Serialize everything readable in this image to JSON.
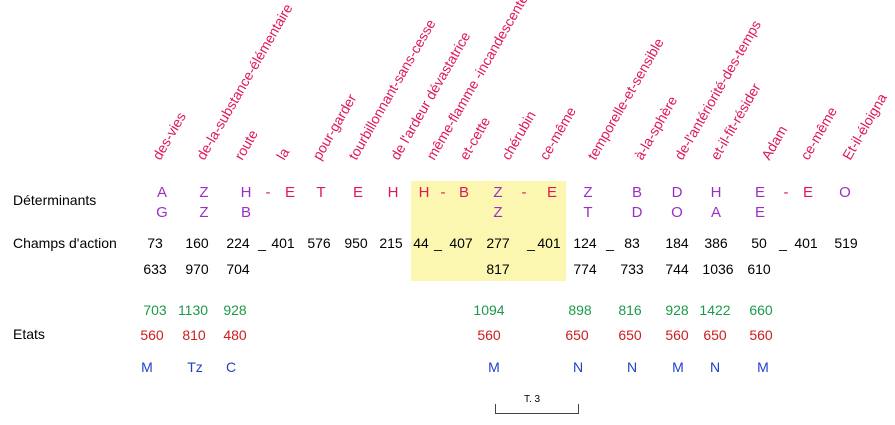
{
  "words": [
    "des-vies",
    "de-la-substance-élémentaire",
    "route",
    "la",
    "pour-garder",
    "tourbillonnant-sans-cesse",
    "de l'ardeur dévastatrice",
    "même-flamme -incandescente",
    "et-cette",
    "chérubin",
    "ce-même",
    "temporelle-et-sensible",
    "à-la-sphère",
    "de-l'antériorité-des-temps",
    "et-il-fit-résider",
    "Adam",
    "ce-même",
    "Et-il-éloigna"
  ],
  "labels": {
    "determinants": "Déterminants",
    "champs": "Champs d'action",
    "etats": "Etats",
    "bracket": "T. 3"
  },
  "det_top": [
    "A",
    "Z",
    "H",
    "-",
    "E",
    "T",
    "E",
    "H",
    "H",
    "-",
    "B",
    "Z",
    "-",
    "E",
    "Z",
    "B",
    "D",
    "H",
    "E",
    "-",
    "E",
    "O"
  ],
  "det_bottom": [
    "G",
    "Z",
    "B",
    "Z",
    "T",
    "D",
    "O",
    "A",
    "E"
  ],
  "champs_top": [
    "73",
    "160",
    "224",
    "_",
    "401",
    "576",
    "950",
    "215",
    "44",
    "_",
    "407",
    "277",
    "_",
    "401",
    "124",
    "_",
    "83",
    "184",
    "386",
    "50",
    "_",
    "401",
    "519"
  ],
  "champs_bottom": [
    "633",
    "970",
    "704",
    "817",
    "774",
    "733",
    "744",
    "1036",
    "610"
  ],
  "etats_green": [
    "703",
    "1130",
    "928",
    "1094",
    "898",
    "816",
    "928",
    "1422",
    "660"
  ],
  "etats_red": [
    "560",
    "810",
    "480",
    "560",
    "650",
    "650",
    "560",
    "650",
    "560"
  ],
  "letters_blue": [
    "M",
    "Tz",
    "C",
    "M",
    "N",
    "N",
    "M",
    "N",
    "M"
  ],
  "colors": {
    "word": "#e0185a",
    "determinant": "#9a2fc4",
    "highlight": "#fbf7b0",
    "green": "#1c9a4a",
    "red": "#cc1c1c",
    "blue": "#1f3fc8"
  }
}
